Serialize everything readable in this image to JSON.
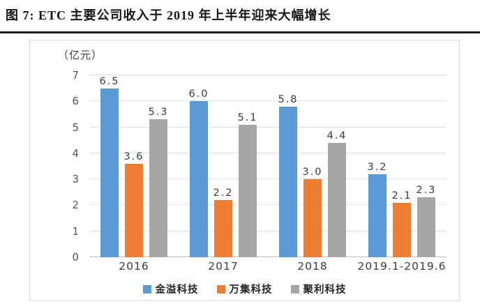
{
  "page": {
    "title": "图 7: ETC 主要公司收入于 2019 年上半年迎来大幅增长"
  },
  "chart_data": {
    "type": "bar",
    "title": "图 7: ETC 主要公司收入于 2019 年上半年迎来大幅增长",
    "unit_label": "（亿元）",
    "categories": [
      "2016",
      "2017",
      "2018",
      "2019.1-2019.6"
    ],
    "series": [
      {
        "name": "金溢科技",
        "color": "#5B9BD5",
        "values": [
          6.5,
          6.0,
          5.8,
          3.2
        ]
      },
      {
        "name": "万集科技",
        "color": "#ED7D31",
        "values": [
          3.6,
          2.2,
          3.0,
          2.1
        ]
      },
      {
        "name": "聚利科技",
        "color": "#A6A6A6",
        "values": [
          5.3,
          5.1,
          4.4,
          2.3
        ]
      }
    ],
    "ylabel": "",
    "xlabel": "",
    "ylim": [
      0,
      7
    ],
    "ytick_interval": 1,
    "grid": true,
    "legend_position": "bottom",
    "value_label_decimals": 1,
    "colors": {
      "gridline": "#e2e2e2",
      "axis_line": "#bdbdbd",
      "label_text": "#3d3d3d",
      "title_rule": "#1c1c1c"
    }
  }
}
